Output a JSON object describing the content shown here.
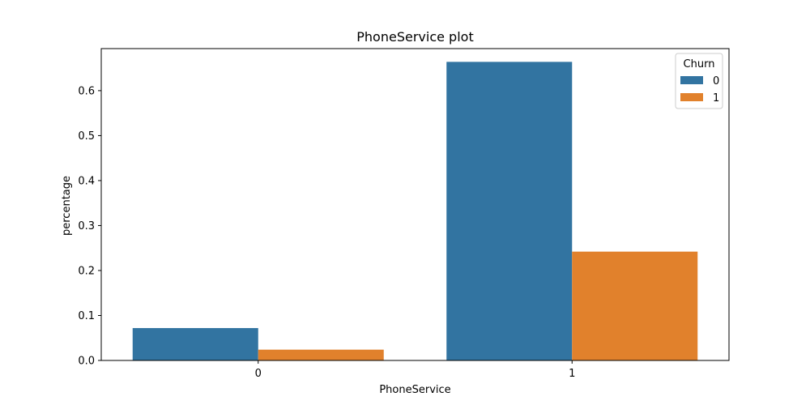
{
  "chart_data": {
    "type": "bar",
    "title": "PhoneService plot",
    "xlabel": "PhoneService",
    "ylabel": "percentage",
    "categories": [
      "0",
      "1"
    ],
    "series": [
      {
        "name": "0",
        "values": [
          0.072,
          0.664
        ],
        "color": "#3274a1"
      },
      {
        "name": "1",
        "values": [
          0.024,
          0.242
        ],
        "color": "#e1812c"
      }
    ],
    "ylim": [
      0,
      0.6935
    ],
    "yticks": [
      0.0,
      0.1,
      0.2,
      0.3,
      0.4,
      0.5,
      0.6
    ],
    "ytick_labels": [
      "0.0",
      "0.1",
      "0.2",
      "0.3",
      "0.4",
      "0.5",
      "0.6"
    ],
    "legend": {
      "title": "Churn",
      "placement": "top-right"
    },
    "grid": false
  }
}
